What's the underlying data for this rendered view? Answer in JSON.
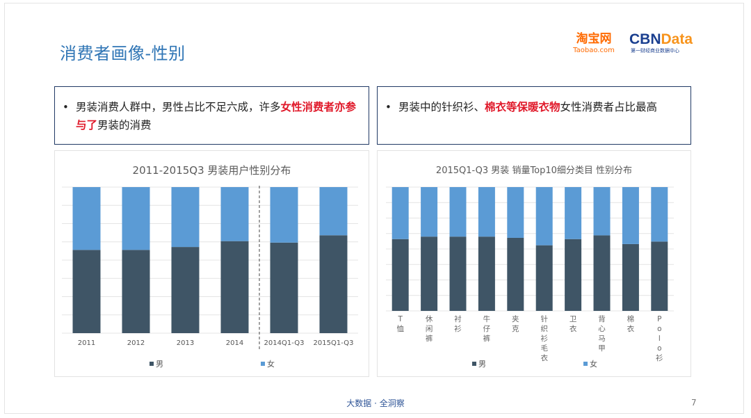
{
  "page": {
    "title": "消费者画像-性别",
    "page_number": "7",
    "footer": "大数据 · 全洞察"
  },
  "logos": {
    "taobao_cn": "淘宝网",
    "taobao_en": "Taobao.com",
    "cbn_main": "CBN",
    "cbn_accent": "Data",
    "cbn_sub": "第一财经商业数据中心"
  },
  "callouts": {
    "left": {
      "bullet": "•",
      "text_before": "男装消费人群中，男性占比不足六成，许多",
      "highlight": "女性消费者亦参与了",
      "text_after": "男装的消费"
    },
    "right": {
      "bullet": "•",
      "text_before": "男装中的针织衫、",
      "highlight": "棉衣等保暖衣物",
      "text_after": "女性消费者占比最高"
    }
  },
  "colors": {
    "male": "#3f5566",
    "female": "#5b9bd5",
    "title_blue": "#2f75b5",
    "highlight_red": "#e0192a",
    "callout_border": "#1f3864"
  },
  "chart_data": [
    {
      "type": "bar",
      "stacked": true,
      "percent": true,
      "title": "2011-2015Q3 男装用户性别分布",
      "categories": [
        "2011",
        "2012",
        "2013",
        "2014",
        "2014Q1-Q3",
        "2015Q1-Q3"
      ],
      "series": [
        {
          "name": "男",
          "values": [
            0.57,
            0.57,
            0.59,
            0.63,
            0.62,
            0.67
          ]
        },
        {
          "name": "女",
          "values": [
            0.43,
            0.43,
            0.41,
            0.37,
            0.38,
            0.33
          ]
        }
      ],
      "ylim": [
        0,
        1
      ],
      "divider_after_category": 3,
      "legend": "bottom",
      "grid": true
    },
    {
      "type": "bar",
      "stacked": true,
      "percent": true,
      "title": "2015Q1-Q3 男装 销量Top10细分类目 性别分布",
      "categories": [
        "T恤",
        "休闲裤",
        "衬衫",
        "牛仔裤",
        "夹克",
        "针织衫/毛衣",
        "卫衣",
        "背心/马甲",
        "棉衣",
        "Polo衫"
      ],
      "series": [
        {
          "name": "男",
          "values": [
            0.58,
            0.6,
            0.6,
            0.6,
            0.59,
            0.53,
            0.58,
            0.61,
            0.54,
            0.56
          ]
        },
        {
          "name": "女",
          "values": [
            0.42,
            0.4,
            0.4,
            0.4,
            0.41,
            0.47,
            0.42,
            0.39,
            0.46,
            0.44
          ]
        }
      ],
      "ylim": [
        0,
        1
      ],
      "legend": "bottom",
      "grid": true
    }
  ]
}
